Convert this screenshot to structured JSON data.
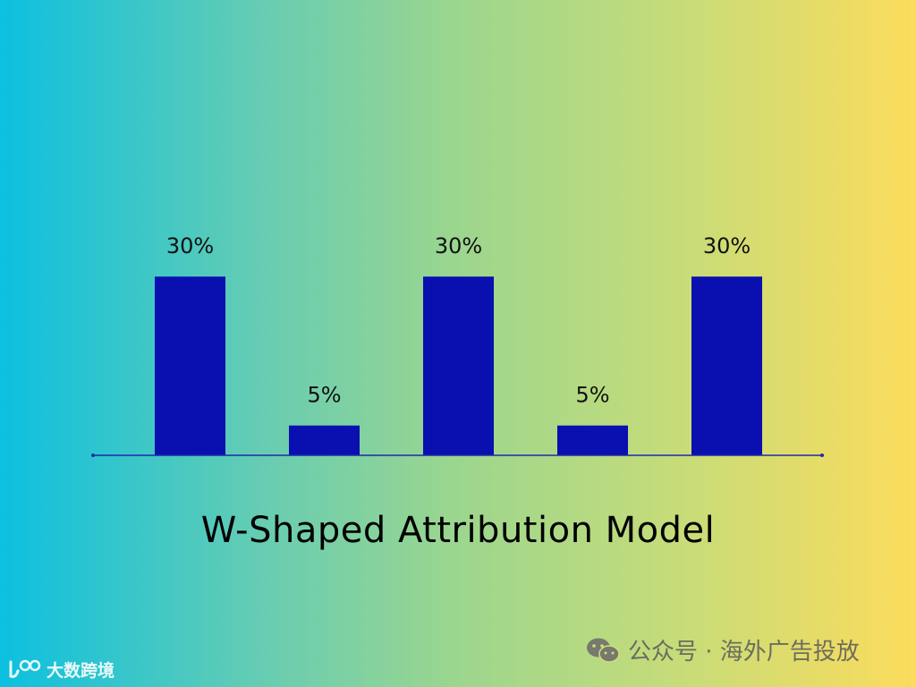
{
  "chart_data": {
    "type": "bar",
    "title": "W-Shaped Attribution Model",
    "categories": [
      "",
      "",
      "",
      "",
      ""
    ],
    "values": [
      30,
      5,
      30,
      5,
      30
    ],
    "data_labels": [
      "30%",
      "5%",
      "30%",
      "5%",
      "30%"
    ],
    "xlabel": "",
    "ylabel": "",
    "ylim": [
      0,
      50
    ],
    "grid": false,
    "legend": "none"
  },
  "colors": {
    "bar": "#0a0fb0",
    "axis": "#1d2aa8",
    "gradient_start": "#0cc0e0",
    "gradient_end": "#fcdc5c"
  },
  "watermarks": {
    "left_text": "大数跨境",
    "left_icon": "logo-icon",
    "right_text": "公众号 · 海外广告投放",
    "right_icon": "wechat-icon"
  }
}
